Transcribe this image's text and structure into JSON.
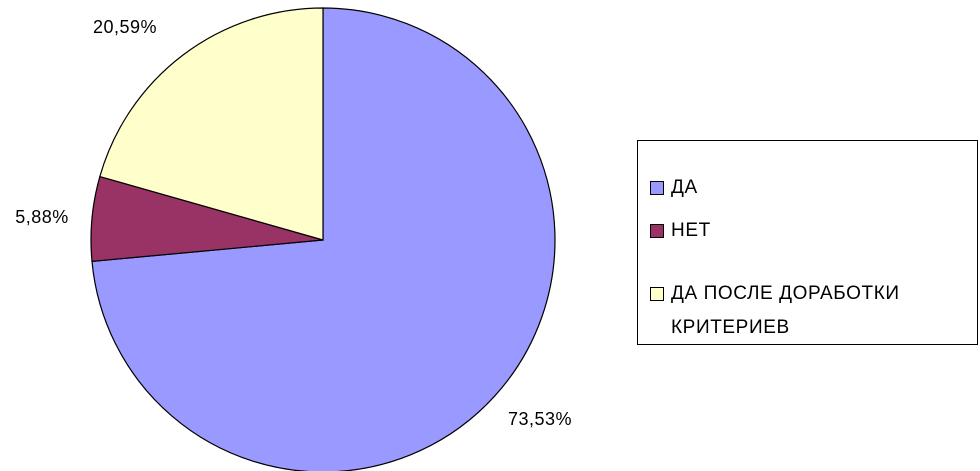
{
  "chart_data": {
    "type": "pie",
    "categories": [
      "ДА",
      "НЕТ",
      "ДА ПОСЛЕ ДОРАБОТКИ КРИТЕРИЕВ"
    ],
    "values": [
      73.53,
      5.88,
      20.59
    ],
    "value_labels": [
      "73,53%",
      "5,88%",
      "20,59%"
    ],
    "colors": [
      "#9999ff",
      "#993366",
      "#ffffcc"
    ],
    "legend": "right"
  }
}
